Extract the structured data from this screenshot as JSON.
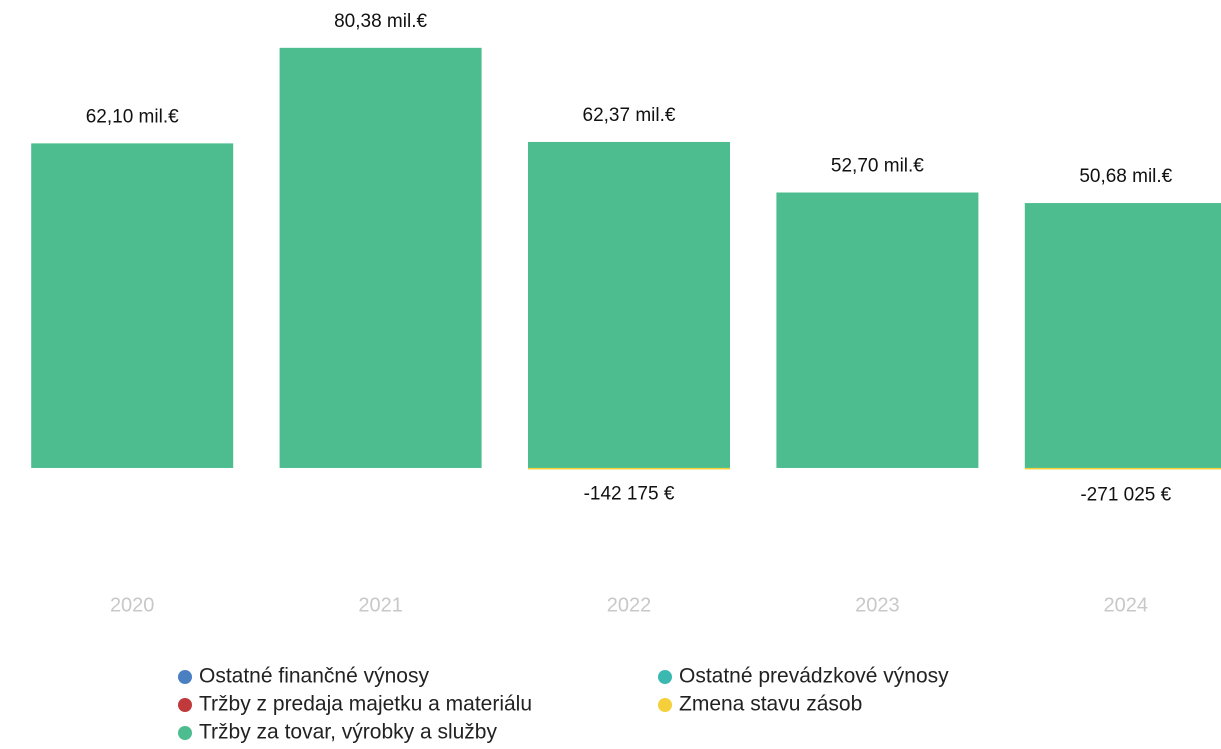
{
  "chart_data": {
    "type": "stacked_bar",
    "categories": [
      "2020",
      "2021",
      "2022",
      "2023",
      "2024"
    ],
    "series": [
      {
        "name": "Ostatné finančné výnosy",
        "color": "#4a7fc1",
        "values": [
          0,
          0,
          0,
          0,
          0
        ]
      },
      {
        "name": "Tržby z predaja majetku a materiálu",
        "color": "#c0393b",
        "values": [
          0,
          0,
          0,
          0,
          0
        ]
      },
      {
        "name": "Tržby za tovar, výrobky a služby",
        "color": "#4dbd8f",
        "values": [
          62100000,
          80380000,
          62370000,
          52700000,
          50680000
        ],
        "value_labels": [
          "62,10 mil.€",
          "80,38 mil.€",
          "62,37 mil.€",
          "52,70 mil.€",
          "50,68 mil.€"
        ]
      },
      {
        "name": "Ostatné prevádzkové výnosy",
        "color": "#3bb8b0",
        "values": [
          0,
          0,
          0,
          0,
          0
        ]
      },
      {
        "name": "Zmena stavu zásob",
        "color": "#f5d03b",
        "values": [
          0,
          0,
          -142175,
          0,
          -271025
        ],
        "value_labels": [
          null,
          null,
          "-142 175 €",
          null,
          "-271 025 €"
        ]
      }
    ],
    "ylim": [
      -20000000,
      88000000
    ]
  }
}
